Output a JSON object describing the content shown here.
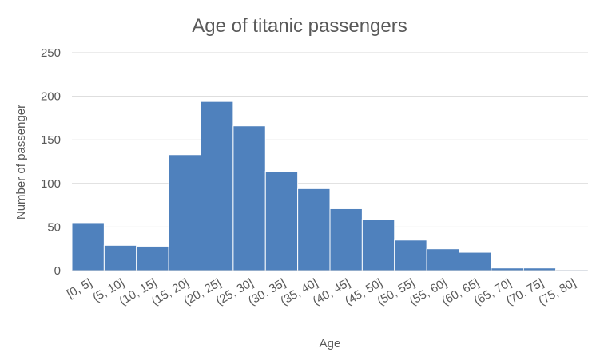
{
  "chart_data": {
    "type": "bar",
    "title": "Age of titanic passengers",
    "xlabel": "Age",
    "ylabel": "Number of passenger",
    "ylim": [
      0,
      250
    ],
    "yticks": [
      0,
      50,
      100,
      150,
      200,
      250
    ],
    "categories": [
      "[0, 5]",
      "(5, 10]",
      "(10, 15]",
      "(15, 20]",
      "(20, 25]",
      "(25, 30]",
      "(30, 35]",
      "(35, 40]",
      "(40, 45]",
      "(45, 50]",
      "(50, 55]",
      "(55, 60]",
      "(60, 65]",
      "(65, 70]",
      "(70, 75]",
      "(75, 80]"
    ],
    "values": [
      55,
      29,
      28,
      133,
      194,
      166,
      114,
      94,
      71,
      59,
      35,
      25,
      21,
      3,
      3,
      1
    ],
    "bar_color": "#4f81bd",
    "grid": true,
    "grid_color": "#d9d9d9"
  }
}
